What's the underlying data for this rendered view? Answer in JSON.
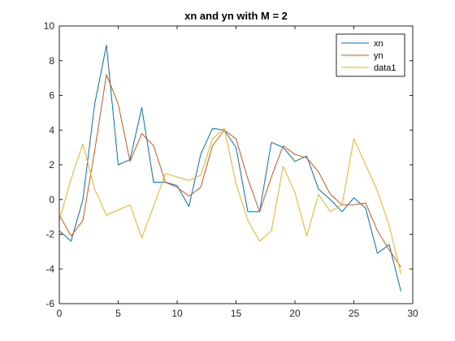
{
  "chart_data": {
    "type": "line",
    "title": "xn and yn with M = 2",
    "xlabel": "",
    "ylabel": "",
    "xlim": [
      0,
      30
    ],
    "ylim": [
      -6,
      10
    ],
    "xticks": [
      0,
      5,
      10,
      15,
      20,
      25,
      30
    ],
    "yticks": [
      -6,
      -4,
      -2,
      0,
      2,
      4,
      6,
      8,
      10
    ],
    "xtick_labels": [
      "0",
      "5",
      "10",
      "15",
      "20",
      "25",
      "30"
    ],
    "ytick_labels": [
      "-6",
      "-4",
      "-2",
      "0",
      "2",
      "4",
      "6",
      "8",
      "10"
    ],
    "grid": false,
    "legend_position": "top-right",
    "x": [
      0,
      1,
      2,
      3,
      4,
      5,
      6,
      7,
      8,
      9,
      10,
      11,
      12,
      13,
      14,
      15,
      16,
      17,
      18,
      19,
      20,
      21,
      22,
      23,
      24,
      25,
      26,
      27,
      28,
      29
    ],
    "series": [
      {
        "name": "xn",
        "color": "#0072BD",
        "values": [
          -1.8,
          -2.4,
          0.0,
          5.5,
          8.9,
          2.0,
          2.3,
          5.3,
          1.0,
          1.0,
          0.8,
          -0.4,
          2.6,
          4.1,
          4.0,
          3.0,
          -0.7,
          -0.7,
          3.3,
          3.0,
          2.2,
          2.5,
          0.6,
          0.0,
          -0.7,
          0.1,
          -0.5,
          -3.1,
          -2.6,
          -5.3
        ]
      },
      {
        "name": "yn",
        "color": "#D95319",
        "values": [
          -0.9,
          -2.1,
          -1.2,
          2.8,
          7.2,
          5.5,
          2.2,
          3.8,
          3.1,
          1.0,
          0.7,
          0.2,
          0.7,
          3.1,
          4.0,
          3.5,
          1.2,
          -0.7,
          1.3,
          3.1,
          2.6,
          2.4,
          1.6,
          0.3,
          -0.3,
          -0.3,
          -0.2,
          -1.8,
          -2.9,
          -3.9
        ]
      },
      {
        "name": "data1",
        "color": "#EDB120",
        "values": [
          -1.2,
          1.2,
          3.2,
          0.6,
          -0.9,
          -0.6,
          -0.3,
          -2.2,
          -0.4,
          1.5,
          1.3,
          1.1,
          1.4,
          3.5,
          4.1,
          0.9,
          -1.2,
          -2.4,
          -1.8,
          1.9,
          0.4,
          -2.1,
          0.3,
          -0.7,
          -0.3,
          3.5,
          2.0,
          0.5,
          -1.5,
          -4.3
        ]
      }
    ]
  }
}
